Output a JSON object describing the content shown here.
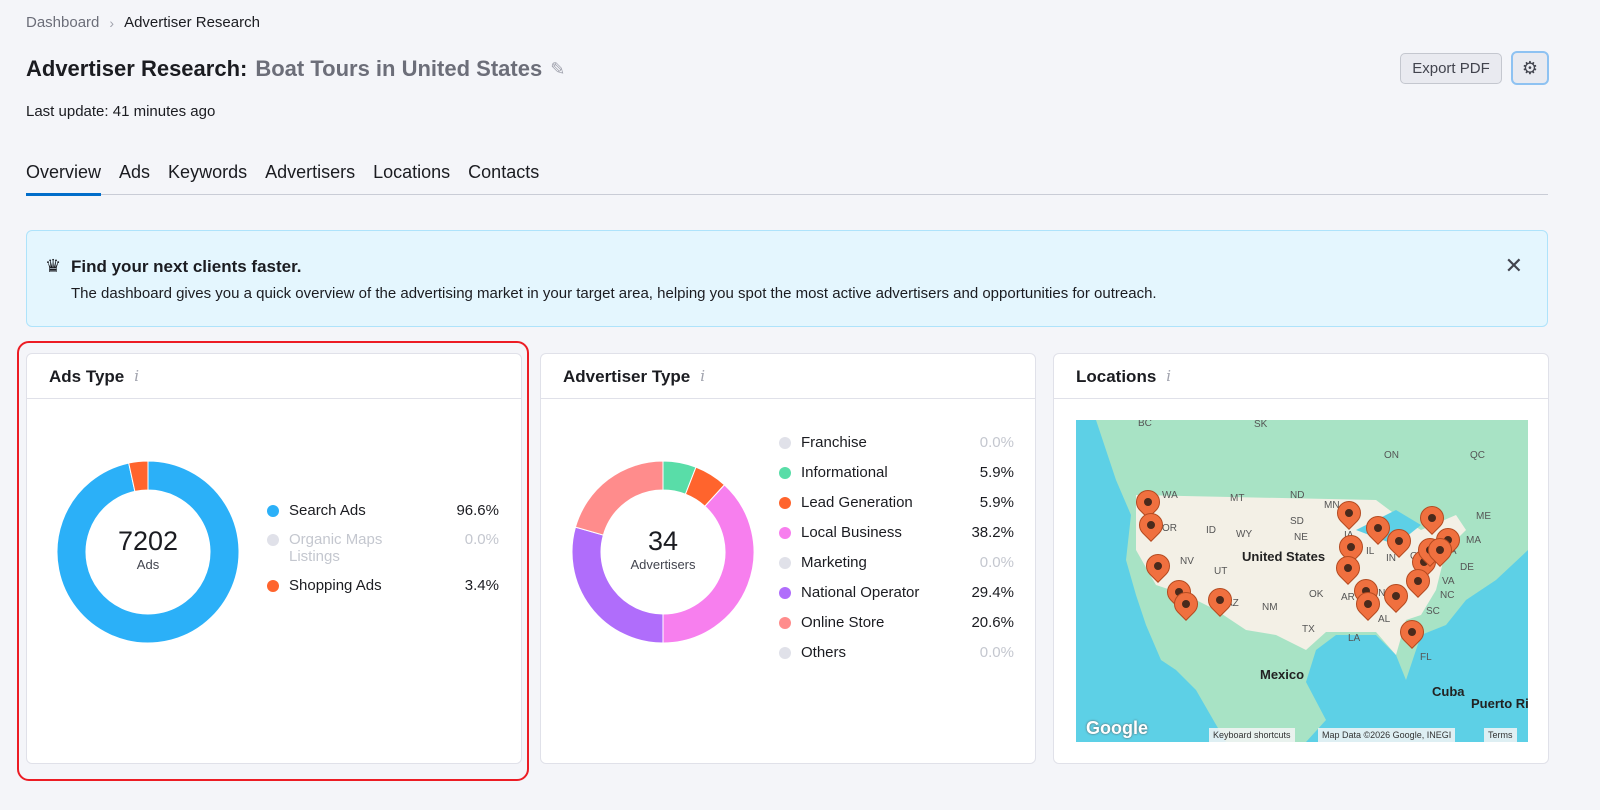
{
  "breadcrumb": {
    "items": [
      "Dashboard",
      "Advertiser Research"
    ]
  },
  "header": {
    "title": "Advertiser Research:",
    "subtitle": "Boat Tours in United States",
    "last_update": "Last update: 41 minutes ago",
    "export_label": "Export PDF"
  },
  "tabs": [
    {
      "label": "Overview",
      "active": true
    },
    {
      "label": "Ads"
    },
    {
      "label": "Keywords"
    },
    {
      "label": "Advertisers"
    },
    {
      "label": "Locations"
    },
    {
      "label": "Contacts"
    }
  ],
  "banner": {
    "title": "Find your next clients faster.",
    "text": "The dashboard gives you a quick overview of the advertising market in your target area, helping you spot the most active advertisers and opportunities for outreach.",
    "icon": "crown-icon"
  },
  "ads_type": {
    "title": "Ads Type",
    "total": "7202",
    "unit": "Ads",
    "items": [
      {
        "label": "Search Ads",
        "pct": "96.6%",
        "value": 96.6,
        "color": "#2bb0f8"
      },
      {
        "label": "Organic Maps Listings",
        "pct": "0.0%",
        "value": 0,
        "color": "#e0e1e9"
      },
      {
        "label": "Shopping Ads",
        "pct": "3.4%",
        "value": 3.4,
        "color": "#ff642d"
      }
    ]
  },
  "advertiser_type": {
    "title": "Advertiser Type",
    "total": "34",
    "unit": "Advertisers",
    "items": [
      {
        "label": "Franchise",
        "pct": "0.0%",
        "value": 0,
        "color": "#e0e1e9"
      },
      {
        "label": "Informational",
        "pct": "5.9%",
        "value": 5.9,
        "color": "#59dda8"
      },
      {
        "label": "Lead Generation",
        "pct": "5.9%",
        "value": 5.9,
        "color": "#ff642d"
      },
      {
        "label": "Local Business",
        "pct": "38.2%",
        "value": 38.2,
        "color": "#f77fee"
      },
      {
        "label": "Marketing",
        "pct": "0.0%",
        "value": 0,
        "color": "#e0e1e9"
      },
      {
        "label": "National Operator",
        "pct": "29.4%",
        "value": 29.4,
        "color": "#b06dfb"
      },
      {
        "label": "Online Store",
        "pct": "20.6%",
        "value": 20.6,
        "color": "#ff8c8c"
      },
      {
        "label": "Others",
        "pct": "0.0%",
        "value": 0,
        "color": "#e0e1e9"
      }
    ]
  },
  "locations": {
    "title": "Locations",
    "map_labels": [
      "BC",
      "SK",
      "ON",
      "QC",
      "WA",
      "MT",
      "ND",
      "MN",
      "OR",
      "ID",
      "SD",
      "WY",
      "NE",
      "IA",
      "IL",
      "IN",
      "OH",
      "PA",
      "MA",
      "ME",
      "NV",
      "UT",
      "DE",
      "VA",
      "NC",
      "OK",
      "AR",
      "TN",
      "AZ",
      "NM",
      "SC",
      "AL",
      "TX",
      "LA",
      "FL",
      "United States",
      "Mexico",
      "Cuba",
      "Puerto Ri"
    ],
    "attribution": {
      "logo": "Google",
      "shortcuts": "Keyboard shortcuts",
      "data": "Map Data ©2026 Google, INEGI",
      "terms": "Terms"
    }
  }
}
